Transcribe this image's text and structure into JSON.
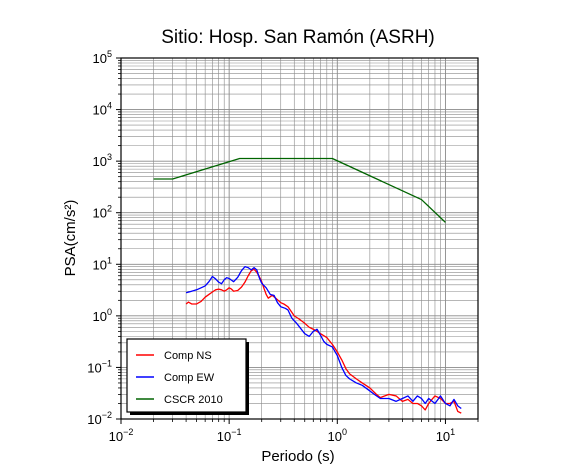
{
  "chart_data": {
    "type": "line",
    "title": "Sitio: Hosp. San Ramón (ASRH)",
    "xlabel": "Periodo (s)",
    "ylabel": "PSA(cm/s²)",
    "xscale": "log",
    "yscale": "log",
    "xlim": [
      0.01,
      20
    ],
    "ylim": [
      0.01,
      100000
    ],
    "xticks": [
      {
        "value": 0.01,
        "base": "10",
        "exp": "−2"
      },
      {
        "value": 0.1,
        "base": "10",
        "exp": "−1"
      },
      {
        "value": 1,
        "base": "10",
        "exp": "0"
      },
      {
        "value": 10,
        "base": "10",
        "exp": "1"
      }
    ],
    "yticks": [
      {
        "value": 0.01,
        "base": "10",
        "exp": "−2"
      },
      {
        "value": 0.1,
        "base": "10",
        "exp": "−1"
      },
      {
        "value": 1,
        "base": "10",
        "exp": "0"
      },
      {
        "value": 10,
        "base": "10",
        "exp": "1"
      },
      {
        "value": 100,
        "base": "10",
        "exp": "2"
      },
      {
        "value": 1000,
        "base": "10",
        "exp": "3"
      },
      {
        "value": 10000,
        "base": "10",
        "exp": "4"
      },
      {
        "value": 100000,
        "base": "10",
        "exp": "5"
      }
    ],
    "grid": true,
    "legend_position": "bottom-left",
    "series": [
      {
        "name": "Comp NS",
        "color": "#ff0000",
        "points": [
          [
            0.04,
            1.7
          ],
          [
            0.042,
            1.85
          ],
          [
            0.045,
            1.7
          ],
          [
            0.05,
            1.7
          ],
          [
            0.055,
            1.9
          ],
          [
            0.06,
            2.3
          ],
          [
            0.065,
            2.6
          ],
          [
            0.07,
            2.9
          ],
          [
            0.075,
            3.2
          ],
          [
            0.08,
            3.3
          ],
          [
            0.085,
            3.2
          ],
          [
            0.09,
            3.0
          ],
          [
            0.095,
            3.2
          ],
          [
            0.1,
            3.5
          ],
          [
            0.105,
            3.3
          ],
          [
            0.11,
            3.0
          ],
          [
            0.12,
            3.1
          ],
          [
            0.13,
            3.6
          ],
          [
            0.14,
            4.5
          ],
          [
            0.15,
            6.0
          ],
          [
            0.16,
            7.5
          ],
          [
            0.17,
            8.0
          ],
          [
            0.18,
            7.0
          ],
          [
            0.19,
            5.8
          ],
          [
            0.2,
            4.6
          ],
          [
            0.21,
            3.4
          ],
          [
            0.22,
            2.6
          ],
          [
            0.23,
            2.2
          ],
          [
            0.25,
            2.5
          ],
          [
            0.27,
            2.2
          ],
          [
            0.3,
            1.8
          ],
          [
            0.32,
            1.7
          ],
          [
            0.35,
            1.5
          ],
          [
            0.4,
            1.0
          ],
          [
            0.45,
            0.85
          ],
          [
            0.5,
            0.72
          ],
          [
            0.55,
            0.6
          ],
          [
            0.6,
            0.55
          ],
          [
            0.65,
            0.5
          ],
          [
            0.7,
            0.45
          ],
          [
            0.8,
            0.38
          ],
          [
            0.9,
            0.28
          ],
          [
            1.0,
            0.2
          ],
          [
            1.1,
            0.14
          ],
          [
            1.2,
            0.095
          ],
          [
            1.3,
            0.075
          ],
          [
            1.5,
            0.06
          ],
          [
            1.7,
            0.05
          ],
          [
            2.0,
            0.04
          ],
          [
            2.3,
            0.03
          ],
          [
            2.5,
            0.026
          ],
          [
            3.0,
            0.03
          ],
          [
            3.5,
            0.028
          ],
          [
            4.0,
            0.022
          ],
          [
            4.5,
            0.024
          ],
          [
            5.0,
            0.02
          ],
          [
            5.5,
            0.02
          ],
          [
            6.0,
            0.018
          ],
          [
            6.5,
            0.015
          ],
          [
            7.0,
            0.02
          ],
          [
            7.5,
            0.024
          ],
          [
            8.0,
            0.028
          ],
          [
            9.0,
            0.025
          ],
          [
            10.0,
            0.02
          ],
          [
            11.0,
            0.02
          ],
          [
            12.0,
            0.022
          ],
          [
            13.0,
            0.014
          ],
          [
            14.0,
            0.013
          ]
        ]
      },
      {
        "name": "Comp EW",
        "color": "#0000ff",
        "points": [
          [
            0.04,
            2.8
          ],
          [
            0.045,
            3.0
          ],
          [
            0.05,
            3.2
          ],
          [
            0.055,
            3.5
          ],
          [
            0.06,
            3.8
          ],
          [
            0.065,
            4.6
          ],
          [
            0.07,
            5.8
          ],
          [
            0.075,
            5.2
          ],
          [
            0.08,
            4.5
          ],
          [
            0.085,
            4.2
          ],
          [
            0.09,
            5.0
          ],
          [
            0.095,
            5.5
          ],
          [
            0.1,
            5.3
          ],
          [
            0.11,
            4.6
          ],
          [
            0.12,
            5.6
          ],
          [
            0.13,
            7.5
          ],
          [
            0.14,
            9.0
          ],
          [
            0.15,
            8.6
          ],
          [
            0.16,
            7.8
          ],
          [
            0.17,
            8.6
          ],
          [
            0.18,
            7.8
          ],
          [
            0.19,
            5.5
          ],
          [
            0.2,
            4.3
          ],
          [
            0.22,
            3.5
          ],
          [
            0.24,
            2.6
          ],
          [
            0.26,
            2.5
          ],
          [
            0.28,
            1.8
          ],
          [
            0.3,
            1.5
          ],
          [
            0.33,
            1.4
          ],
          [
            0.35,
            1.3
          ],
          [
            0.38,
            0.9
          ],
          [
            0.42,
            0.72
          ],
          [
            0.45,
            0.6
          ],
          [
            0.5,
            0.45
          ],
          [
            0.55,
            0.4
          ],
          [
            0.6,
            0.5
          ],
          [
            0.65,
            0.55
          ],
          [
            0.7,
            0.42
          ],
          [
            0.75,
            0.32
          ],
          [
            0.8,
            0.28
          ],
          [
            0.9,
            0.25
          ],
          [
            1.0,
            0.17
          ],
          [
            1.1,
            0.1
          ],
          [
            1.2,
            0.07
          ],
          [
            1.3,
            0.06
          ],
          [
            1.5,
            0.05
          ],
          [
            1.7,
            0.045
          ],
          [
            2.0,
            0.035
          ],
          [
            2.2,
            0.03
          ],
          [
            2.5,
            0.025
          ],
          [
            3.0,
            0.025
          ],
          [
            3.5,
            0.022
          ],
          [
            4.0,
            0.025
          ],
          [
            4.5,
            0.028
          ],
          [
            5.0,
            0.022
          ],
          [
            5.5,
            0.028
          ],
          [
            6.0,
            0.025
          ],
          [
            6.5,
            0.02
          ],
          [
            7.0,
            0.025
          ],
          [
            8.0,
            0.02
          ],
          [
            9.0,
            0.028
          ],
          [
            10.0,
            0.02
          ],
          [
            11.0,
            0.018
          ],
          [
            12.0,
            0.024
          ],
          [
            13.0,
            0.018
          ],
          [
            14.0,
            0.016
          ]
        ]
      },
      {
        "name": "CSCR 2010",
        "color": "#006400",
        "points": [
          [
            0.02,
            450
          ],
          [
            0.03,
            450
          ],
          [
            0.125,
            1125
          ],
          [
            0.9,
            1125
          ],
          [
            6.0,
            180
          ],
          [
            10.0,
            65
          ]
        ]
      }
    ]
  }
}
